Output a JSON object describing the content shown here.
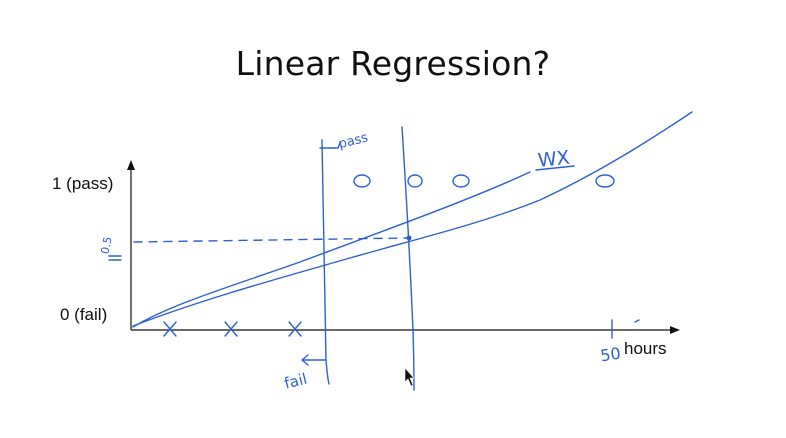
{
  "title": "Linear Regression?",
  "chart_data": {
    "type": "scatter",
    "title": "Linear Regression?",
    "xlabel": "hours",
    "ylabel": "",
    "y_tick_labels": [
      "0 (fail)",
      "1 (pass)"
    ],
    "x_axis_marker": "50",
    "threshold_label": "0.5",
    "series": [
      {
        "name": "fail",
        "marker": "x",
        "x": [
          5,
          12,
          19
        ],
        "y": [
          0,
          0,
          0
        ]
      },
      {
        "name": "pass",
        "marker": "o",
        "x": [
          27,
          33,
          38,
          55
        ],
        "y": [
          1,
          1,
          1,
          1
        ]
      }
    ],
    "annotations": {
      "pass": "pass",
      "fail": "fail",
      "model": "WX"
    },
    "colors": {
      "ink": "#2d5fd2",
      "text": "#111111"
    }
  }
}
